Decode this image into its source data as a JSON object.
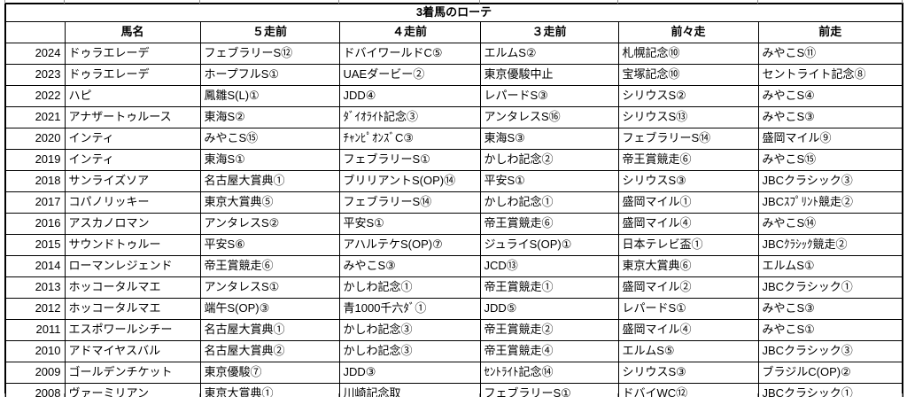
{
  "colors": {
    "background": "#ffffff",
    "border": "#000000",
    "text": "#000000",
    "gridline_tick": "#8f8f8f"
  },
  "table": {
    "title": "3着馬のローテ",
    "columns": [
      "",
      "馬名",
      "５走前",
      "４走前",
      "３走前",
      "前々走",
      "前走"
    ],
    "rows": [
      {
        "year": "2024",
        "horse": "ドゥラエレーデ",
        "runs": [
          "フェブラリーS⑫",
          "ドバイワールドC⑤",
          "エルムS②",
          "札幌記念⑩",
          "みやこS⑪"
        ]
      },
      {
        "year": "2023",
        "horse": "ドゥラエレーデ",
        "runs": [
          "ホープフルS①",
          "UAEダービー②",
          "東京優駿中止",
          "宝塚記念⑩",
          "セントライト記念⑧"
        ]
      },
      {
        "year": "2022",
        "horse": "ハピ",
        "runs": [
          "鳳雛S(L)①",
          "JDD④",
          "レパードS③",
          "シリウスS②",
          "みやこS④"
        ]
      },
      {
        "year": "2021",
        "horse": "アナザートゥルース",
        "runs": [
          "東海S②",
          "ﾀﾞｲｵﾗｲﾄ記念③",
          "アンタレスS⑯",
          "シリウスS⑬",
          "みやこS③"
        ]
      },
      {
        "year": "2020",
        "horse": "インティ",
        "runs": [
          "みやこS⑮",
          "ﾁｬﾝﾋﾟｵﾝｽﾞC③",
          "東海S③",
          "フェブラリーS⑭",
          "盛岡マイル⑨"
        ]
      },
      {
        "year": "2019",
        "horse": "インティ",
        "runs": [
          "東海S①",
          "フェブラリーS①",
          "かしわ記念②",
          "帝王賞競走⑥",
          "みやこS⑮"
        ]
      },
      {
        "year": "2018",
        "horse": "サンライズソア",
        "runs": [
          "名古屋大賞典①",
          "ブリリアントS(OP)⑭",
          "平安S①",
          "シリウスS③",
          "JBCクラシック③"
        ]
      },
      {
        "year": "2017",
        "horse": "コパノリッキー",
        "runs": [
          "東京大賞典⑤",
          "フェブラリーS⑭",
          "かしわ記念①",
          "盛岡マイル①",
          "JBCｽﾌﾟﾘﾝﾄ競走②"
        ]
      },
      {
        "year": "2016",
        "horse": "アスカノロマン",
        "runs": [
          "アンタレスS②",
          "平安S①",
          "帝王賞競走⑥",
          "盛岡マイル④",
          "みやこS⑭"
        ]
      },
      {
        "year": "2015",
        "horse": "サウンドトゥルー",
        "runs": [
          "平安S⑥",
          "アハルテケS(OP)⑦",
          "ジュライS(OP)①",
          "日本テレビ盃①",
          "JBCｸﾗｼｯｸ競走②"
        ]
      },
      {
        "year": "2014",
        "horse": "ローマンレジェンド",
        "runs": [
          "帝王賞競走⑥",
          "みやこS③",
          "JCD⑬",
          "東京大賞典⑥",
          "エルムS①"
        ]
      },
      {
        "year": "2013",
        "horse": "ホッコータルマエ",
        "runs": [
          "アンタレスS①",
          "かしわ記念①",
          "帝王賞競走①",
          "盛岡マイル②",
          "JBCクラシック①"
        ]
      },
      {
        "year": "2012",
        "horse": "ホッコータルマエ",
        "runs": [
          "端午S(OP)③",
          "青1000千六ﾀﾞ①",
          "JDD⑤",
          "レパードS①",
          "みやこS③"
        ]
      },
      {
        "year": "2011",
        "horse": "エスポワールシチー",
        "runs": [
          "名古屋大賞典①",
          "かしわ記念③",
          "帝王賞競走②",
          "盛岡マイル④",
          "みやこS①"
        ]
      },
      {
        "year": "2010",
        "horse": "アドマイヤスバル",
        "runs": [
          "名古屋大賞典②",
          "かしわ記念③",
          "帝王賞競走④",
          "エルムS⑤",
          "JBCクラシック③"
        ]
      },
      {
        "year": "2009",
        "horse": "ゴールデンチケット",
        "runs": [
          "東京優駿⑦",
          "JDD③",
          "ｾﾝﾄﾗｲﾄ記念⑭",
          "シリウスS③",
          "ブラジルC(OP)②"
        ]
      },
      {
        "year": "2008",
        "horse": "ヴァーミリアン",
        "runs": [
          "東京大賞典①",
          "川崎記念取",
          "フェブラリーS①",
          "ドバイWC⑫",
          "JBCクラシック①"
        ]
      }
    ]
  }
}
